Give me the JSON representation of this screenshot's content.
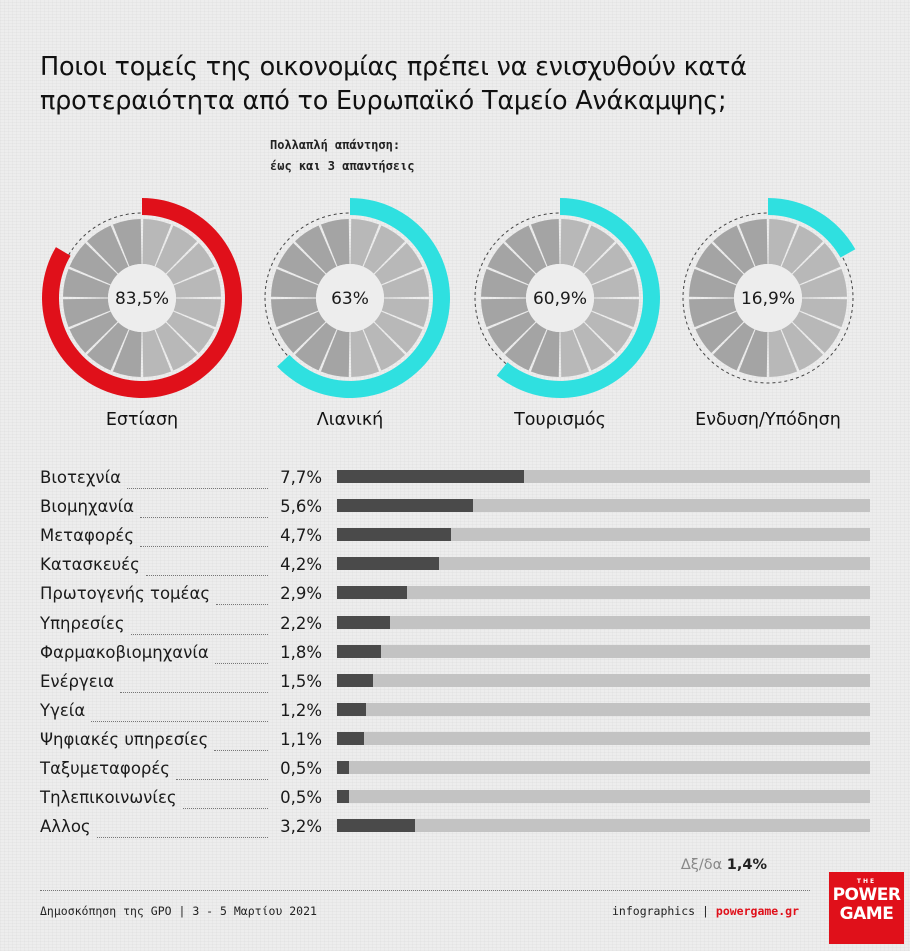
{
  "title": "Ποιοι τομείς της οικονομίας πρέπει να ενισχυθούν κατά προτεραιότητα από το Ευρωπαϊκό Ταμείο Ανάκαμψης;",
  "subtitle_line1": "Πολλαπλή απάντηση:",
  "subtitle_line2": "έως και 3 απαντήσεις",
  "colors": {
    "primary_red": "#e0101a",
    "accent_cyan": "#2fe0e0",
    "bar_fill": "#4a4a4a",
    "bar_track": "#c3c3c3",
    "ring_segments": "#a9a9a9",
    "ring_center": "#ededed"
  },
  "chart_data": [
    {
      "type": "pie",
      "style": "donut",
      "categories": [
        "Εστίαση",
        "Λιανική",
        "Τουρισμός",
        "Ενδυση/Υπόδηση"
      ],
      "values": [
        83.5,
        63,
        60.9,
        16.9
      ],
      "value_labels": [
        "83,5%",
        "63%",
        "60,9%",
        "16,9%"
      ],
      "highlight_colors": [
        "#e0101a",
        "#2fe0e0",
        "#2fe0e0",
        "#2fe0e0"
      ]
    },
    {
      "type": "bar",
      "orientation": "horizontal",
      "categories": [
        "Βιοτεχνία",
        "Βιομηχανία",
        "Μεταφορές",
        "Κατασκευές",
        "Πρωτογενής τομέας",
        "Υπηρεσίες",
        "Φαρμακοβιομηχανία",
        "Ενέργεια",
        "Υγεία",
        "Ψηφιακές υπηρεσίες",
        "Ταξυμεταφορές",
        "Τηλεπικοινωνίες",
        "Αλλος"
      ],
      "values": [
        7.7,
        5.6,
        4.7,
        4.2,
        2.9,
        2.2,
        1.8,
        1.5,
        1.2,
        1.1,
        0.5,
        0.5,
        3.2
      ],
      "value_labels": [
        "7,7%",
        "5,6%",
        "4,7%",
        "4,2%",
        "2,9%",
        "2,2%",
        "1,8%",
        "1,5%",
        "1,2%",
        "1,1%",
        "0,5%",
        "0,5%",
        "3,2%"
      ],
      "xlim": [
        0,
        22
      ]
    }
  ],
  "dkna_label": "Δξ/δα",
  "dkna_value": "1,4%",
  "footer_left": "Δημοσκόπηση της GPO |  3 - 5 Μαρτίου 2021",
  "footer_right_label": "infographics",
  "footer_right_sep": "|",
  "footer_site": "powergame.gr",
  "logo": {
    "the": "THE",
    "line1": "POWER",
    "line2": "GAME"
  }
}
